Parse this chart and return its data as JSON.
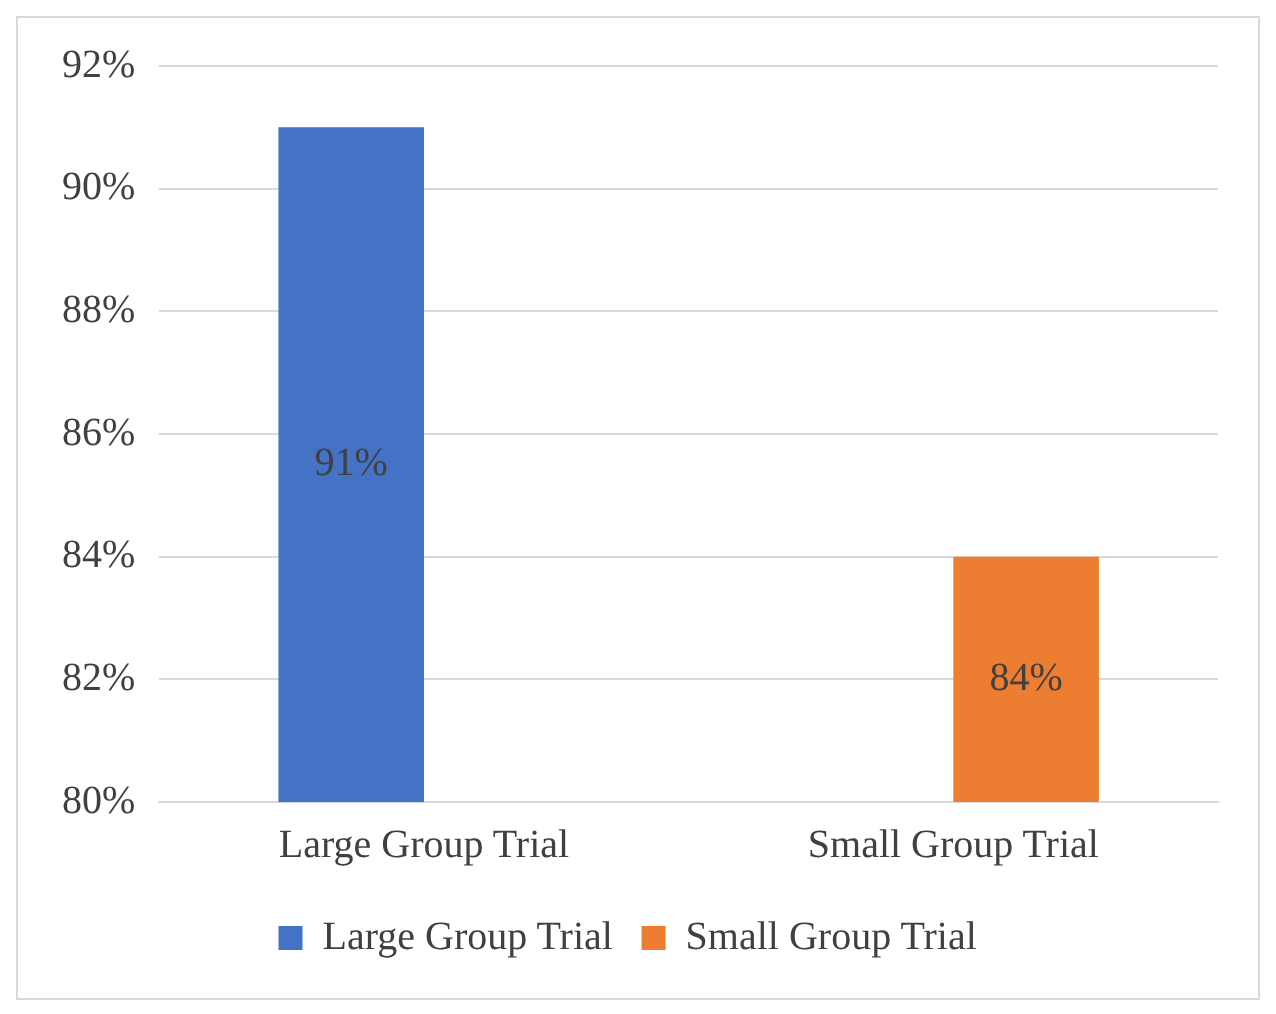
{
  "chart_data": {
    "type": "bar",
    "categories": [
      "Large Group Trial",
      "Small Group Trial"
    ],
    "series": [
      {
        "name": "Large Group Trial",
        "color": "#4472c4",
        "values": [
          91,
          null
        ],
        "value_labels": [
          "91%",
          null
        ]
      },
      {
        "name": "Small Group Trial",
        "color": "#ed7d31",
        "values": [
          null,
          84
        ],
        "value_labels": [
          null,
          "84%"
        ]
      }
    ],
    "ylim": [
      80,
      92
    ],
    "yticks": [
      {
        "value": 80,
        "label": "80%"
      },
      {
        "value": 82,
        "label": "82%"
      },
      {
        "value": 84,
        "label": "84%"
      },
      {
        "value": 86,
        "label": "86%"
      },
      {
        "value": 88,
        "label": "88%"
      },
      {
        "value": 90,
        "label": "90%"
      },
      {
        "value": 92,
        "label": "92%"
      }
    ],
    "grid": "y",
    "legend": "bottom"
  }
}
